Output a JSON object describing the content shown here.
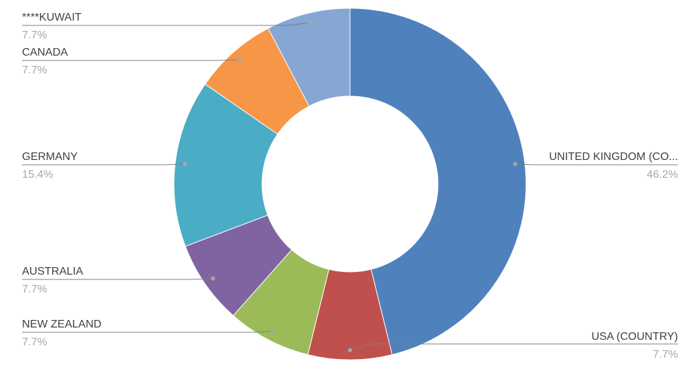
{
  "chart_data": {
    "type": "pie",
    "variant": "donut",
    "title": "",
    "slices": [
      {
        "label": "UNITED KINGDOM (CO...",
        "value": 46.2,
        "percent_label": "46.2%",
        "color": "#4f81bd",
        "label_side": "right"
      },
      {
        "label": "USA (COUNTRY)",
        "value": 7.7,
        "percent_label": "7.7%",
        "color": "#c0504d",
        "label_side": "right"
      },
      {
        "label": "NEW ZEALAND",
        "value": 7.7,
        "percent_label": "7.7%",
        "color": "#9bbb59",
        "label_side": "left"
      },
      {
        "label": "AUSTRALIA",
        "value": 7.7,
        "percent_label": "7.7%",
        "color": "#8064a2",
        "label_side": "left"
      },
      {
        "label": "GERMANY",
        "value": 15.4,
        "percent_label": "15.4%",
        "color": "#4bacc6",
        "label_side": "left"
      },
      {
        "label": "CANADA",
        "value": 7.7,
        "percent_label": "7.7%",
        "color": "#f79646",
        "label_side": "left"
      },
      {
        "label": "****KUWAIT",
        "value": 7.7,
        "percent_label": "7.7%",
        "color": "#86a6d4",
        "label_side": "left"
      }
    ],
    "start_angle_deg": 0,
    "direction": "clockwise",
    "legend": "none",
    "data_labels": "outside-with-leader-lines"
  }
}
